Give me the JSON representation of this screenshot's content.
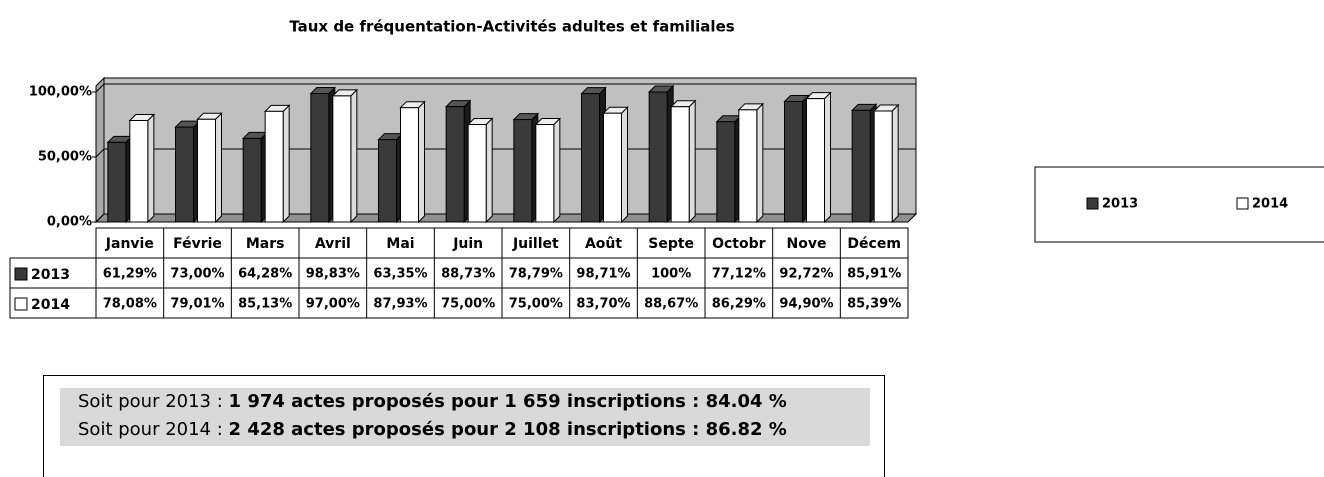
{
  "chart_data": {
    "type": "bar",
    "title": "Taux de fréquentation-Activités adultes et familiales",
    "categories": [
      "Janvie",
      "Févrie",
      "Mars",
      "Avril",
      "Mai",
      "Juin",
      "Juillet",
      "Août",
      "Septe",
      "Octobr",
      "Nove",
      "Décem"
    ],
    "series": [
      {
        "name": "2013",
        "color": "#3a3a3a",
        "values": [
          61.29,
          73.0,
          64.28,
          98.83,
          63.35,
          88.73,
          78.79,
          98.71,
          100,
          77.12,
          92.72,
          85.91
        ],
        "value_labels": [
          "61,29%",
          "73,00%",
          "64,28%",
          "98,83%",
          "63,35%",
          "88,73%",
          "78,79%",
          "98,71%",
          "100%",
          "77,12%",
          "92,72%",
          "85,91%"
        ]
      },
      {
        "name": "2014",
        "color": "#ffffff",
        "values": [
          78.08,
          79.01,
          85.13,
          97.0,
          87.93,
          75.0,
          75.0,
          83.7,
          88.67,
          86.29,
          94.9,
          85.39
        ],
        "value_labels": [
          "78,08%",
          "79,01%",
          "85,13%",
          "97,00%",
          "87,93%",
          "75,00%",
          "75,00%",
          "83,70%",
          "88,67%",
          "86,29%",
          "94,90%",
          "85,39%"
        ]
      }
    ],
    "ylim": [
      0,
      100
    ],
    "yticks": [
      {
        "value": 0,
        "label": "0,00%"
      },
      {
        "value": 50,
        "label": "50,00%"
      },
      {
        "value": 100,
        "label": "100,00%"
      }
    ],
    "grid": true,
    "legend": "right"
  },
  "note": {
    "lines": [
      {
        "prefix": "Soit pour 2013 :",
        "bold": "1 974 actes proposés pour 1 659 inscriptions : 84.04 %"
      },
      {
        "prefix": "Soit pour 2014 :",
        "bold": "2 428 actes proposés pour 2 108 inscriptions : 86.82 %"
      }
    ]
  }
}
